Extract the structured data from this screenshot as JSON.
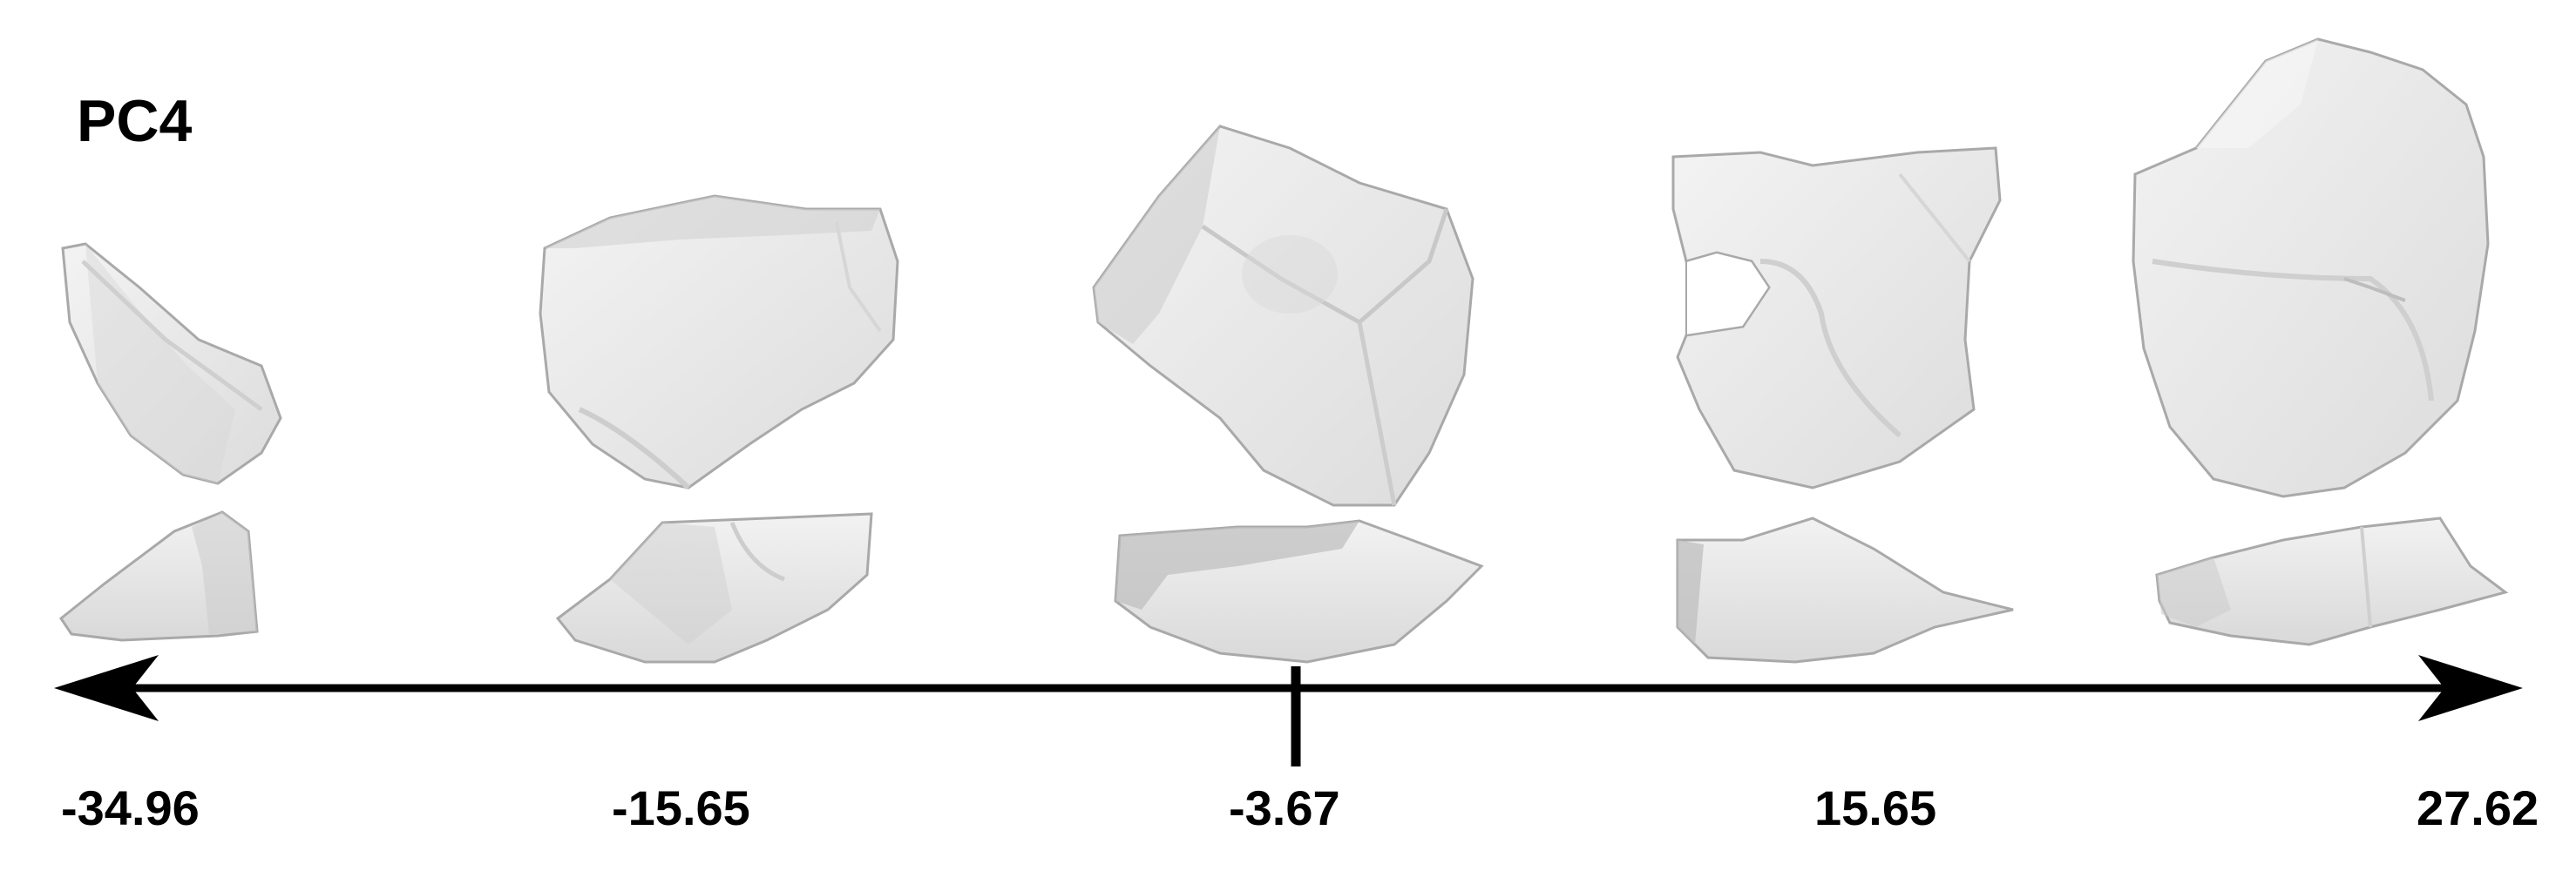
{
  "title": "PC4",
  "axis": {
    "tick_labels": [
      "-34.96",
      "-15.65",
      "-3.67",
      "15.65",
      "27.62"
    ],
    "center_value": "-3.67"
  },
  "colors": {
    "flake_fill": "#ebebeb",
    "flake_shade": "#d2d2d2",
    "flake_edge": "#a9a9a9",
    "axis": "#000000"
  }
}
